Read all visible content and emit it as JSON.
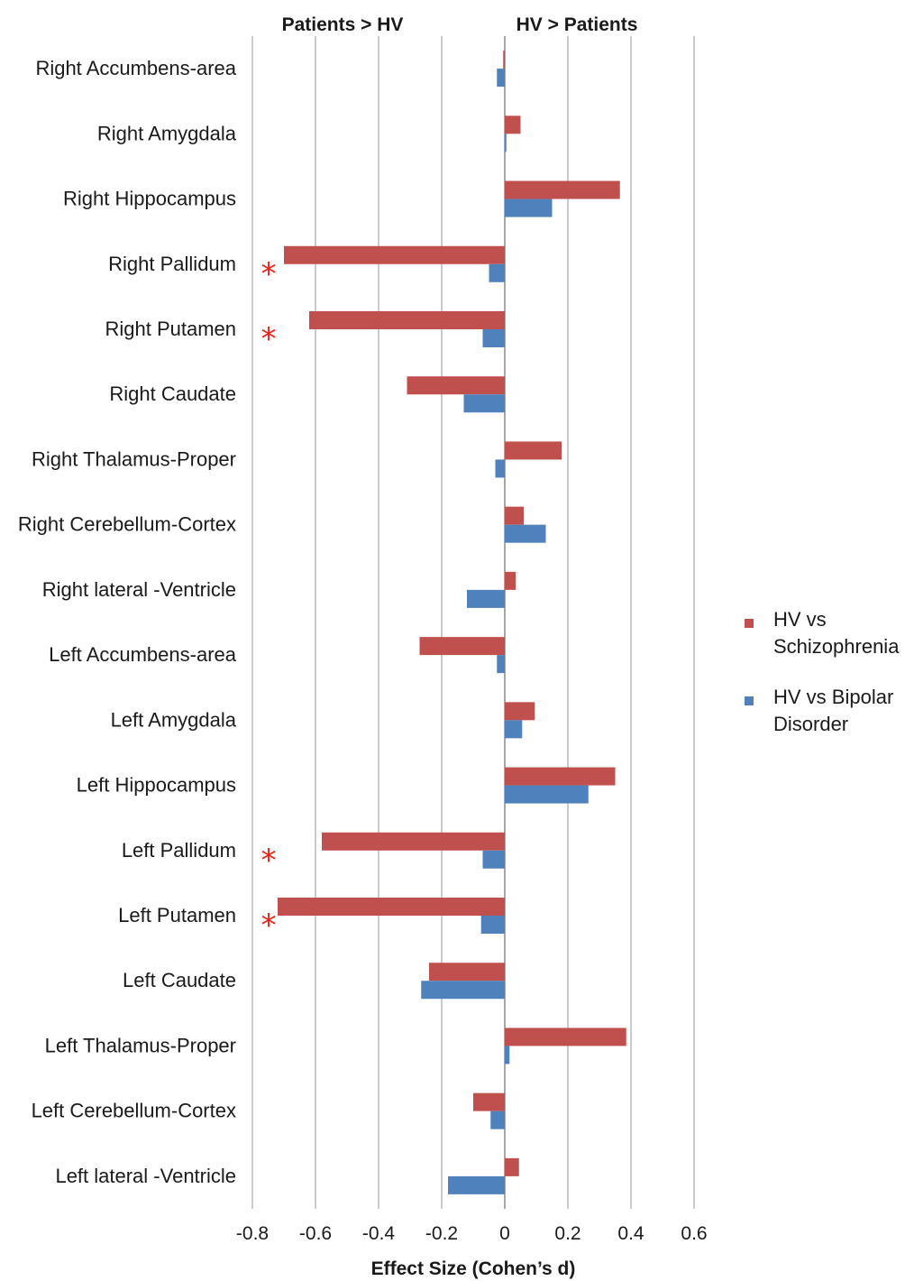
{
  "chart_data": {
    "type": "bar",
    "orientation": "horizontal",
    "categories": [
      "Right Accumbens-area",
      "Right Amygdala",
      "Right Hippocampus",
      "Right Pallidum",
      "Right Putamen",
      "Right Caudate",
      "Right Thalamus-Proper",
      "Right Cerebellum-Cortex",
      "Right lateral -Ventricle",
      "Left Accumbens-area",
      "Left Amygdala",
      "Left Hippocampus",
      "Left Pallidum",
      "Left Putamen",
      "Left Caudate",
      "Left Thalamus-Proper",
      "Left Cerebellum-Cortex",
      "Left lateral -Ventricle"
    ],
    "series": [
      {
        "name": "HV vs Schizophrenia",
        "name_lines": [
          "HV vs",
          "Schizophrenia"
        ],
        "color": "#c0504d",
        "values": [
          -0.005,
          0.05,
          0.365,
          -0.7,
          -0.62,
          -0.31,
          0.18,
          0.06,
          0.035,
          -0.27,
          0.095,
          0.35,
          -0.58,
          -0.72,
          -0.24,
          0.385,
          -0.1,
          0.045
        ]
      },
      {
        "name": "HV vs Bipolar Disorder",
        "name_lines": [
          "HV vs Bipolar",
          "Disorder"
        ],
        "color": "#4f81bd",
        "values": [
          -0.025,
          0.005,
          0.15,
          -0.05,
          -0.07,
          -0.13,
          -0.03,
          0.13,
          -0.12,
          -0.025,
          0.055,
          0.265,
          -0.07,
          -0.075,
          -0.265,
          0.015,
          -0.045,
          -0.18
        ]
      }
    ],
    "xlabel": "Effect Size (Cohen’s d)",
    "ylabel": "",
    "xlim": [
      -0.8,
      0.6
    ],
    "xticks": [
      "-0.8",
      "-0.6",
      "-0.4",
      "-0.2",
      "0",
      "0.2",
      "0.4",
      "0.6"
    ],
    "grid": true,
    "legend_position": "right",
    "top_labels": {
      "left": "Patients > HV",
      "right": "HV > Patients"
    },
    "significance_marker": "*",
    "significant_categories": [
      "Right Pallidum",
      "Right Putamen",
      "Left Pallidum",
      "Left Putamen"
    ]
  }
}
